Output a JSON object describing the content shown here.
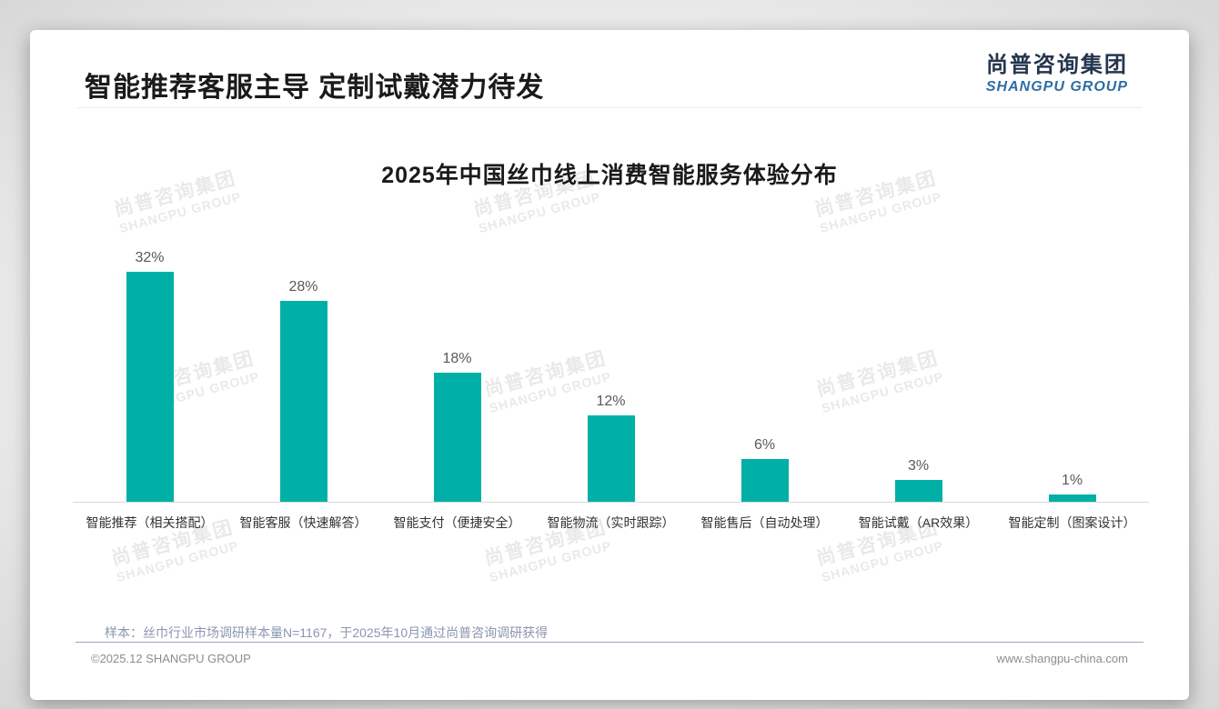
{
  "header": {
    "title": "智能推荐客服主导 定制试戴潜力待发"
  },
  "logo": {
    "name_cn": "尚普咨询集团",
    "name_en": "SHANGPU GROUP"
  },
  "watermark": {
    "line1": "尚普咨询集团",
    "line2": "SHANGPU GROUP"
  },
  "chart_data": {
    "type": "bar",
    "title": "2025年中国丝巾线上消费智能服务体验分布",
    "categories": [
      "智能推荐（相关搭配）",
      "智能客服（快速解答）",
      "智能支付（便捷安全）",
      "智能物流（实时跟踪）",
      "智能售后（自动处理）",
      "智能试戴（AR效果）",
      "智能定制（图案设计）"
    ],
    "values": [
      32,
      28,
      18,
      12,
      6,
      3,
      1
    ],
    "value_labels": [
      "32%",
      "28%",
      "18%",
      "12%",
      "6%",
      "3%",
      "1%"
    ],
    "bar_color": "#00B0A6",
    "xlabel": "",
    "ylabel": "",
    "ylim": [
      0,
      33
    ],
    "grid": false,
    "legend_position": "none"
  },
  "note": "样本：丝巾行业市场调研样本量N=1167，于2025年10月通过尚普咨询调研获得",
  "footer": {
    "copyright": "©2025.12 SHANGPU GROUP",
    "website": "www.shangpu-china.com"
  }
}
